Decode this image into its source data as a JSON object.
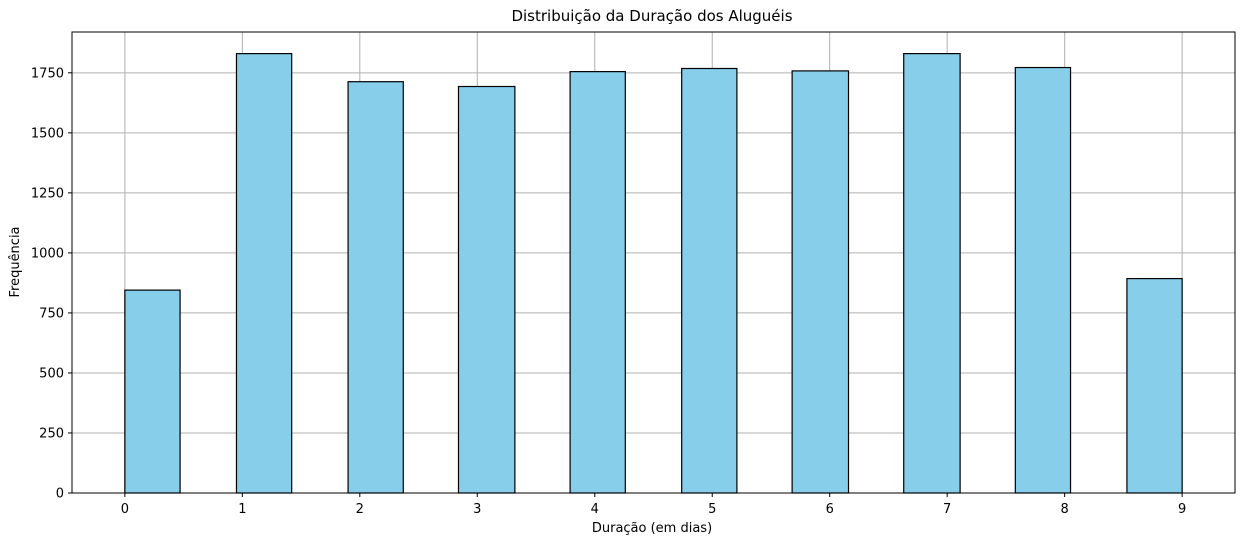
{
  "chart_data": {
    "type": "bar",
    "title": "Distribuição da Duração dos Aluguéis",
    "xlabel": "Duração (em dias)",
    "ylabel": "Frequência",
    "bins": [
      {
        "start": 0,
        "end": 0.47,
        "value": 845
      },
      {
        "start": 0.95,
        "end": 1.42,
        "value": 1830
      },
      {
        "start": 1.9,
        "end": 2.37,
        "value": 1713
      },
      {
        "start": 2.84,
        "end": 3.32,
        "value": 1693
      },
      {
        "start": 3.79,
        "end": 4.26,
        "value": 1755
      },
      {
        "start": 4.74,
        "end": 5.21,
        "value": 1768
      },
      {
        "start": 5.68,
        "end": 6.16,
        "value": 1758
      },
      {
        "start": 6.63,
        "end": 7.11,
        "value": 1830
      },
      {
        "start": 7.58,
        "end": 8.05,
        "value": 1772
      },
      {
        "start": 8.53,
        "end": 9.0,
        "value": 893
      }
    ],
    "xticks": [
      "0",
      "1",
      "2",
      "3",
      "4",
      "5",
      "6",
      "7",
      "8",
      "9"
    ],
    "yticks": [
      "0",
      "250",
      "500",
      "750",
      "1000",
      "1250",
      "1500",
      "1750"
    ],
    "xlim": [
      -0.45,
      9.45
    ],
    "ylim": [
      0,
      1920
    ],
    "grid": true,
    "bar_color": "#87ceeb",
    "edge_color": "#000000",
    "grid_color": "#b0b0b0"
  }
}
